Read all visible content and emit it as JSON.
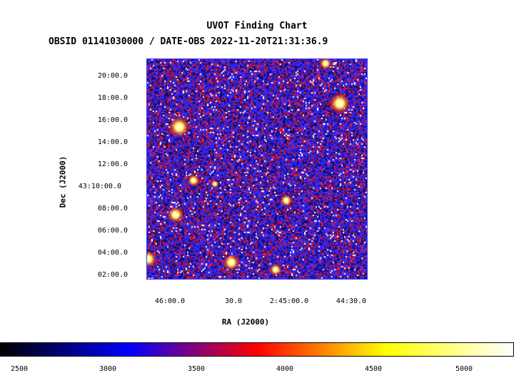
{
  "title": "UVOT Finding Chart",
  "subtitle": "OBSID 01141030000 / DATE-OBS 2022-11-20T21:31:36.9",
  "axes": {
    "xlabel": "RA (J2000)",
    "ylabel": "Dec (J2000)",
    "ra_ticks": [
      "46:00.0",
      "30.0",
      "2:45:00.0",
      "44:30.0"
    ],
    "dec_ticks": [
      "20:00.0",
      "18:00.0",
      "16:00.0",
      "14:00.0",
      "12:00.0",
      "43:10:00.0",
      "08:00.0",
      "06:00.0",
      "04:00.0",
      "02:00.0"
    ]
  },
  "colorbar": {
    "ticks": [
      "2500",
      "3000",
      "3500",
      "4000",
      "4500",
      "5000"
    ],
    "colormap": [
      "#000000",
      "#0000ff",
      "#ff0000",
      "#ffff00",
      "#ffffff"
    ]
  },
  "image": {
    "background_color": "#1a10a8",
    "noise_colors": [
      "#0e0a6e",
      "#2a20d8",
      "#3b2bff",
      "#b0102a",
      "#ff2020",
      "#ffffff"
    ]
  }
}
